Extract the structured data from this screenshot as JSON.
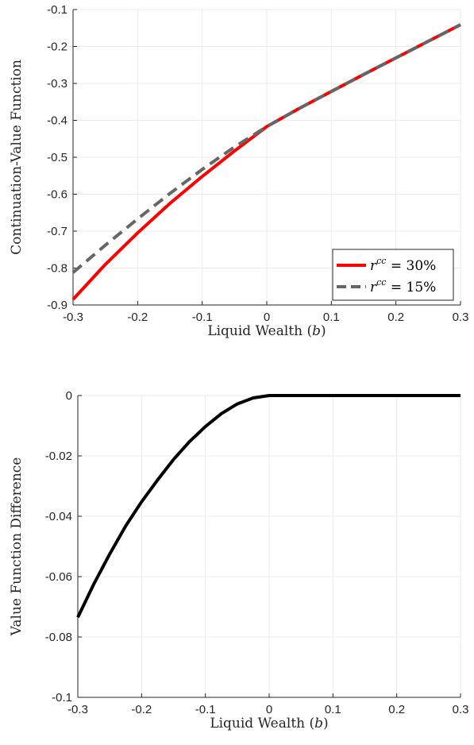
{
  "chart_data": [
    {
      "type": "line",
      "title": "",
      "xlabel": "Liquid Wealth",
      "xlabel_var": "b",
      "ylabel": "Continuation-Value Function",
      "xlim": [
        -0.3,
        0.3
      ],
      "ylim": [
        -0.9,
        -0.1
      ],
      "xticks": [
        -0.3,
        -0.2,
        -0.1,
        0,
        0.1,
        0.2,
        0.3
      ],
      "xtick_labels": [
        "-0.3",
        "-0.2",
        "-0.1",
        "0",
        "0.1",
        "0.2",
        "0.3"
      ],
      "yticks": [
        -0.9,
        -0.8,
        -0.7,
        -0.6,
        -0.5,
        -0.4,
        -0.3,
        -0.2,
        -0.1
      ],
      "ytick_labels": [
        "-0.9",
        "-0.8",
        "-0.7",
        "-0.6",
        "-0.5",
        "-0.4",
        "-0.3",
        "-0.2",
        "-0.1"
      ],
      "grid": true,
      "legend_position": "bottom-right",
      "series": [
        {
          "name": "r^cc = 30%",
          "legend_base": "r",
          "legend_sup": "cc",
          "legend_rest": " = 30%",
          "color": "#ff0000",
          "style": "solid",
          "x": [
            -0.3,
            -0.25,
            -0.2,
            -0.15,
            -0.1,
            -0.05,
            0,
            0.05,
            0.1,
            0.15,
            0.2,
            0.25,
            0.3
          ],
          "y": [
            -0.885,
            -0.79,
            -0.705,
            -0.625,
            -0.552,
            -0.483,
            -0.417,
            -0.368,
            -0.322,
            -0.276,
            -0.231,
            -0.186,
            -0.141
          ]
        },
        {
          "name": "r^cc = 15%",
          "legend_base": "r",
          "legend_sup": "cc",
          "legend_rest": " = 15%",
          "color": "#666666",
          "style": "dashed",
          "x": [
            -0.3,
            -0.25,
            -0.2,
            -0.15,
            -0.1,
            -0.05,
            0,
            0.05,
            0.1,
            0.15,
            0.2,
            0.25,
            0.3
          ],
          "y": [
            -0.812,
            -0.738,
            -0.667,
            -0.598,
            -0.533,
            -0.472,
            -0.417,
            -0.368,
            -0.322,
            -0.276,
            -0.231,
            -0.186,
            -0.141
          ]
        }
      ]
    },
    {
      "type": "line",
      "title": "",
      "xlabel": "Liquid Wealth",
      "xlabel_var": "b",
      "ylabel": "Value Function Difference",
      "xlim": [
        -0.3,
        0.3
      ],
      "ylim": [
        -0.1,
        0
      ],
      "xticks": [
        -0.3,
        -0.2,
        -0.1,
        0,
        0.1,
        0.2,
        0.3
      ],
      "xtick_labels": [
        "-0.3",
        "-0.2",
        "-0.1",
        "0",
        "0.1",
        "0.2",
        "0.3"
      ],
      "yticks": [
        -0.1,
        -0.08,
        -0.06,
        -0.04,
        -0.02,
        0
      ],
      "ytick_labels": [
        "-0.1",
        "-0.08",
        "-0.06",
        "-0.04",
        "-0.02",
        "0"
      ],
      "grid": true,
      "series": [
        {
          "color": "#000000",
          "style": "solid",
          "x": [
            -0.3,
            -0.275,
            -0.25,
            -0.225,
            -0.2,
            -0.175,
            -0.15,
            -0.125,
            -0.1,
            -0.075,
            -0.05,
            -0.025,
            0,
            0.1,
            0.2,
            0.3
          ],
          "y": [
            -0.0735,
            -0.0625,
            -0.0525,
            -0.0432,
            -0.0352,
            -0.028,
            -0.0212,
            -0.0153,
            -0.0103,
            -0.006,
            -0.0028,
            -0.0008,
            0,
            0,
            0,
            0
          ]
        }
      ]
    }
  ]
}
